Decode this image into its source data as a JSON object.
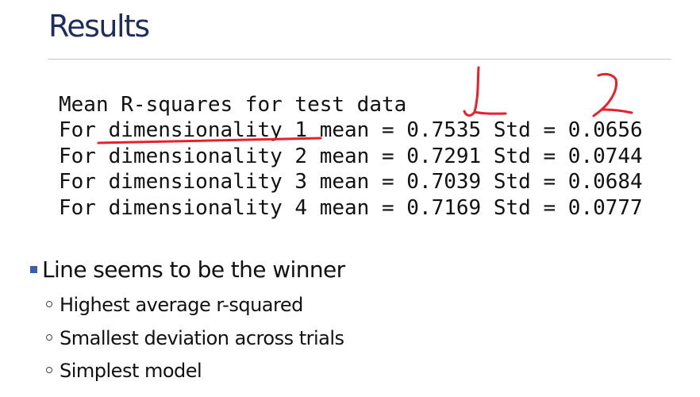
{
  "slide": {
    "title": "Results"
  },
  "output": {
    "lines": [
      "Mean R-squares for test data",
      "For dimensionality 1 mean = 0.7535 Std = 0.0656",
      "For dimensionality 2 mean = 0.7291 Std = 0.0744",
      "For dimensionality 3 mean = 0.7039 Std = 0.0684",
      "For dimensionality 4 mean = 0.7169 Std = 0.0777"
    ]
  },
  "annotation": {
    "ink_color": "#e8202a",
    "marks": [
      "underline-dimensionality-1",
      "check-mark-mean",
      "check-mark-std"
    ]
  },
  "bullets": {
    "main": "Line seems to be the winner",
    "sub": [
      "Highest average r-squared",
      "Smallest deviation across trials",
      "Simplest model"
    ]
  },
  "colors": {
    "title": "#1f2d5c",
    "bullet_square": "#3a5fae",
    "text": "#111111"
  },
  "icons": {
    "main_bullet": "square-bullet-icon",
    "sub_bullet": "circle-bullet-icon"
  }
}
